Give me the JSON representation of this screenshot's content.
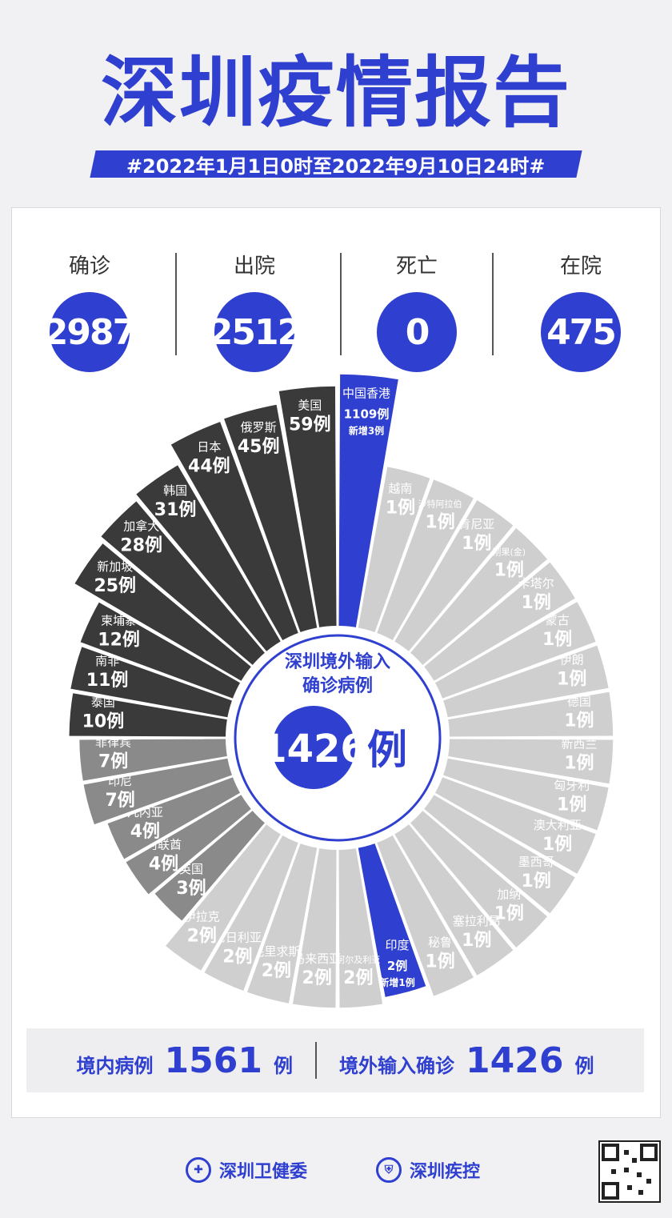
{
  "header": {
    "title": "深圳疫情报告",
    "subtitle": "#2022年1月1日0时至2022年9月10日24时#"
  },
  "stats": [
    {
      "label": "确诊",
      "value": "2987"
    },
    {
      "label": "出院",
      "value": "2512"
    },
    {
      "label": "死亡",
      "value": "0"
    },
    {
      "label": "在院",
      "value": "475"
    }
  ],
  "center": {
    "line1": "深圳境外输入",
    "line2": "确诊病例",
    "number": "1426",
    "unit": "例"
  },
  "summary": {
    "domestic_label": "境内病例",
    "domestic_value": "1561",
    "domestic_unit": "例",
    "imported_label": "境外输入确诊",
    "imported_value": "1426",
    "imported_unit": "例"
  },
  "footer": {
    "org1": "深圳卫健委",
    "org2": "深圳疾控"
  },
  "colors": {
    "accent": "#2f3fcf",
    "dark": "#3a3a3a",
    "light": "#cfcfcf"
  },
  "chart_data": {
    "type": "pie",
    "note_new_label": "新增",
    "categories": [
      "中国香港",
      "越南",
      "沙特阿拉伯",
      "肯尼亚",
      "刚果(金)",
      "卡塔尔",
      "蒙古",
      "伊朗",
      "德国",
      "新西兰",
      "匈牙利",
      "澳大利亚",
      "墨西哥",
      "加纳",
      "塞拉利昂",
      "秘鲁",
      "印度",
      "阿尔及利亚",
      "马来西亚",
      "毛里求斯",
      "尼日利亚",
      "伊拉克",
      "英国",
      "阿联酋",
      "几内亚",
      "印尼",
      "菲律宾",
      "泰国",
      "南非",
      "柬埔寨",
      "新加坡",
      "加拿大",
      "韩国",
      "日本",
      "俄罗斯",
      "美国"
    ],
    "values": [
      1109,
      1,
      1,
      1,
      1,
      1,
      1,
      1,
      1,
      1,
      1,
      1,
      1,
      1,
      1,
      1,
      2,
      2,
      2,
      2,
      2,
      2,
      3,
      4,
      4,
      7,
      7,
      10,
      11,
      12,
      25,
      28,
      31,
      44,
      45,
      59
    ],
    "value_labels": [
      "1109例",
      "1例",
      "1例",
      "1例",
      "1例",
      "1例",
      "1例",
      "1例",
      "1例",
      "1例",
      "1例",
      "1例",
      "1例",
      "1例",
      "1例",
      "1例",
      "2例",
      "2例",
      "2例",
      "2例",
      "2例",
      "2例",
      "3例",
      "4例",
      "4例",
      "7例",
      "7例",
      "10例",
      "11例",
      "12例",
      "25例",
      "28例",
      "31例",
      "44例",
      "45例",
      "59例"
    ],
    "new_cases": {
      "中国香港": "新增3例",
      "印度": "新增1例"
    },
    "highlight": [
      "中国香港",
      "印度"
    ]
  }
}
